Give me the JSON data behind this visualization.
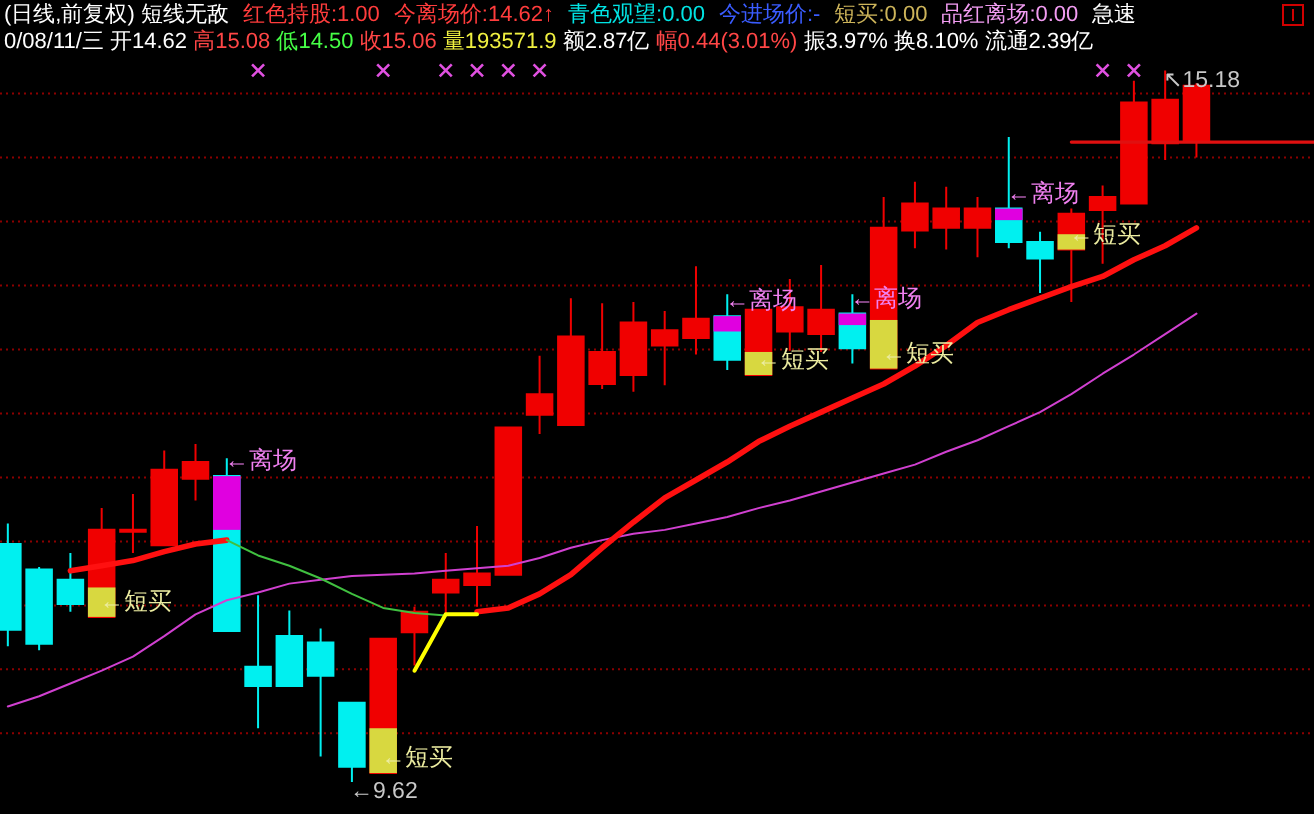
{
  "chart_data": {
    "type": "candlestick",
    "title": "(日线,前复权) 短线无敌",
    "subtitle": "0/08/11/三 开14.62 高15.08 低14.50 收15.06 量193571.9 额2.87亿 幅0.44(3.01%) 振3.97% 换8.10% 流通2.39亿",
    "annotations": [
      "红色持股:1.00",
      "今离场价:14.62↑",
      "青色观望:0.00",
      "今进场价:-",
      "短买:0.00",
      "品红离场:0.00",
      "急速"
    ],
    "categories": [
      null,
      null,
      null,
      null,
      null,
      null,
      null,
      null,
      null,
      null,
      null,
      null,
      null,
      null,
      null,
      null,
      null,
      null,
      null,
      null,
      null,
      null,
      null,
      null,
      null,
      null,
      null,
      null,
      null,
      null,
      null,
      null,
      null,
      null,
      null,
      null,
      null,
      null,
      null,
      null,
      null,
      null,
      null
    ],
    "ylim": [
      9.37,
      15.73
    ],
    "yticks": [
      {
        "value": 10,
        "label": null
      },
      {
        "value": 10.5,
        "label": null
      },
      {
        "value": 11,
        "label": null
      },
      {
        "value": 11.5,
        "label": null
      },
      {
        "value": 12,
        "label": null
      },
      {
        "value": 12.5,
        "label": null
      },
      {
        "value": 13,
        "label": null
      },
      {
        "value": 13.5,
        "label": null
      },
      {
        "value": 14,
        "label": null
      },
      {
        "value": 14.5,
        "label": null
      },
      {
        "value": 15,
        "label": null
      }
    ],
    "grid": "y",
    "series": [
      {
        "type": "candlestick",
        "ohlc": [
          [
            11.48,
            11.64,
            10.68,
            10.81
          ],
          [
            11.28,
            11.3,
            10.65,
            10.7
          ],
          [
            11.2,
            11.41,
            10.95,
            11.01
          ],
          [
            10.91,
            11.76,
            10.91,
            11.59
          ],
          [
            11.59,
            11.87,
            11.41,
            11.59
          ],
          [
            11.47,
            12.21,
            11.47,
            12.06
          ],
          [
            11.99,
            12.26,
            11.82,
            12.12
          ],
          [
            12.01,
            12.15,
            10.8,
            10.8
          ],
          [
            10.52,
            11.08,
            10.04,
            10.37
          ],
          [
            10.76,
            10.96,
            10.37,
            10.37
          ],
          [
            10.71,
            10.82,
            9.82,
            10.45
          ],
          [
            10.24,
            10.24,
            9.62,
            9.74
          ],
          [
            9.69,
            10.74,
            9.69,
            10.74
          ],
          [
            10.79,
            10.99,
            10.53,
            10.95
          ],
          [
            11.1,
            11.41,
            10.94,
            11.2
          ],
          [
            11.16,
            11.62,
            10.99,
            11.25
          ],
          [
            11.24,
            12.39,
            11.24,
            12.39
          ],
          [
            12.49,
            12.95,
            12.34,
            12.65
          ],
          [
            12.41,
            13.4,
            12.41,
            13.1
          ],
          [
            12.73,
            13.36,
            12.69,
            12.98
          ],
          [
            12.8,
            13.37,
            12.67,
            13.21
          ],
          [
            13.03,
            13.3,
            12.72,
            13.15
          ],
          [
            13.09,
            13.65,
            12.96,
            13.24
          ],
          [
            13.26,
            13.43,
            12.84,
            12.92
          ],
          [
            12.8,
            13.31,
            12.8,
            13.31
          ],
          [
            13.14,
            13.55,
            12.99,
            13.33
          ],
          [
            13.12,
            13.66,
            12.98,
            13.31
          ],
          [
            13.28,
            13.43,
            12.89,
            13.01
          ],
          [
            12.85,
            14.19,
            12.85,
            13.95
          ],
          [
            13.93,
            14.31,
            13.79,
            14.14
          ],
          [
            13.95,
            14.27,
            13.78,
            14.1
          ],
          [
            13.95,
            14.19,
            13.72,
            14.1
          ],
          [
            14.1,
            14.66,
            13.79,
            13.84
          ],
          [
            13.84,
            13.92,
            13.44,
            13.71
          ],
          [
            13.78,
            14.1,
            13.37,
            14.06
          ],
          [
            14.09,
            14.28,
            13.67,
            14.19
          ],
          [
            14.14,
            15.1,
            14.14,
            14.93
          ],
          [
            14.61,
            15.18,
            14.48,
            14.95
          ],
          [
            14.62,
            15.08,
            14.5,
            15.06
          ],
          null,
          null,
          null,
          null
        ],
        "colors": [
          "#00f0f0",
          "#00f0f0",
          "#00f0f0",
          "#f00000",
          "#f00000",
          "#f00000",
          "#f00000",
          "#00f0f0",
          "#00f0f0",
          "#00f0f0",
          "#00f0f0",
          "#00f0f0",
          "#f00000",
          "#f00000",
          "#f00000",
          "#f00000",
          "#f00000",
          "#f00000",
          "#f00000",
          "#f00000",
          "#f00000",
          "#f00000",
          "#f00000",
          "#00f0f0",
          "#f00000",
          "#f00000",
          "#f00000",
          "#00f0f0",
          "#f00000",
          "#f00000",
          "#f00000",
          "#f00000",
          "#00f0f0",
          "#00f0f0",
          "#f00000",
          "#f00000",
          "#f00000",
          "#f00000",
          "#f00000",
          null,
          null,
          null,
          null
        ],
        "value_labels": [
          null,
          null,
          null,
          null,
          null,
          null,
          null,
          null,
          null,
          null,
          null,
          "←9.62",
          null,
          null,
          null,
          null,
          null,
          null,
          null,
          null,
          null,
          null,
          null,
          null,
          null,
          null,
          null,
          null,
          null,
          null,
          null,
          null,
          null,
          null,
          null,
          null,
          null,
          "↖15.18",
          null,
          null,
          null,
          null,
          null
        ]
      },
      {
        "type": "bar",
        "color": "#d8d840",
        "base": [
          null,
          null,
          null,
          10.91,
          null,
          null,
          null,
          null,
          null,
          null,
          null,
          null,
          9.69,
          null,
          null,
          null,
          null,
          null,
          null,
          null,
          null,
          null,
          null,
          null,
          12.8,
          null,
          null,
          null,
          12.85,
          null,
          null,
          null,
          null,
          null,
          13.78,
          null,
          null,
          null,
          null,
          null,
          null,
          null,
          null
        ],
        "values": [
          null,
          null,
          null,
          0.23,
          null,
          null,
          null,
          null,
          null,
          null,
          null,
          null,
          0.35,
          null,
          null,
          null,
          null,
          null,
          null,
          null,
          null,
          null,
          null,
          null,
          0.18,
          null,
          null,
          null,
          0.38,
          null,
          null,
          null,
          null,
          null,
          0.12,
          null,
          null,
          null,
          null,
          null,
          null,
          null,
          null
        ],
        "value_labels": [
          null,
          null,
          null,
          "←短买",
          null,
          null,
          null,
          null,
          null,
          null,
          null,
          null,
          "←短买",
          null,
          null,
          null,
          null,
          null,
          null,
          null,
          null,
          null,
          null,
          null,
          "←短买",
          null,
          null,
          null,
          "←短买",
          null,
          null,
          null,
          null,
          null,
          "←短买",
          null,
          null,
          null,
          null,
          null,
          null,
          null,
          null
        ]
      },
      {
        "type": "bar",
        "color": "#e000e0",
        "base": [
          null,
          null,
          null,
          null,
          null,
          null,
          null,
          11.59,
          null,
          null,
          null,
          null,
          null,
          null,
          null,
          null,
          null,
          null,
          null,
          null,
          null,
          null,
          null,
          13.14,
          null,
          null,
          null,
          13.19,
          null,
          null,
          null,
          null,
          14.01,
          null,
          null,
          null,
          null,
          null,
          null,
          null,
          null,
          null,
          null
        ],
        "values": [
          null,
          null,
          null,
          null,
          null,
          null,
          null,
          0.42,
          null,
          null,
          null,
          null,
          null,
          null,
          null,
          null,
          null,
          null,
          null,
          null,
          null,
          null,
          null,
          0.12,
          null,
          null,
          null,
          0.09,
          null,
          null,
          null,
          null,
          0.09,
          null,
          null,
          null,
          null,
          null,
          null,
          null,
          null,
          null,
          null
        ],
        "value_labels": [
          null,
          null,
          null,
          null,
          null,
          null,
          null,
          "←离场",
          null,
          null,
          null,
          null,
          null,
          null,
          null,
          null,
          null,
          null,
          null,
          null,
          null,
          null,
          null,
          "←离场",
          null,
          null,
          null,
          "←离场",
          null,
          null,
          null,
          null,
          "←离场",
          null,
          null,
          null,
          null,
          null,
          null,
          null,
          null,
          null,
          null
        ]
      },
      {
        "type": "line",
        "color": "#d040d0",
        "values": [
          10.21,
          10.29,
          10.39,
          10.49,
          10.6,
          10.76,
          10.93,
          11.04,
          11.1,
          11.17,
          11.2,
          11.23,
          11.24,
          11.25,
          11.27,
          11.29,
          11.31,
          11.37,
          11.45,
          11.51,
          11.56,
          11.59,
          11.64,
          11.69,
          11.76,
          11.82,
          11.89,
          11.96,
          12.03,
          12.1,
          12.2,
          12.29,
          12.4,
          12.51,
          12.65,
          12.81,
          12.96,
          13.12,
          13.28,
          null,
          null,
          null,
          null
        ]
      },
      {
        "type": "line",
        "color": "#ff1010",
        "values": [
          null,
          null,
          11.27,
          11.31,
          11.35,
          11.42,
          11.48,
          11.51,
          null,
          null,
          null,
          null,
          null,
          null,
          null,
          10.95,
          10.98,
          11.09,
          11.24,
          11.45,
          11.65,
          11.84,
          11.98,
          12.12,
          12.28,
          12.4,
          12.51,
          12.62,
          12.73,
          12.87,
          13.03,
          13.21,
          13.31,
          13.4,
          13.49,
          13.57,
          13.7,
          13.81,
          13.95,
          null,
          null,
          null,
          null
        ]
      },
      {
        "type": "line",
        "color": "#40c040",
        "values": [
          null,
          null,
          null,
          null,
          null,
          null,
          null,
          11.51,
          11.39,
          11.31,
          11.21,
          11.09,
          10.98,
          10.94,
          10.92,
          null,
          null,
          null,
          null,
          null,
          null,
          null,
          null,
          null,
          null,
          null,
          null,
          null,
          null,
          null,
          null,
          null,
          null,
          null,
          null,
          null,
          null,
          null,
          null,
          null,
          null,
          null,
          null
        ]
      },
      {
        "type": "line",
        "color": "#ffff00",
        "values": [
          null,
          null,
          null,
          null,
          null,
          null,
          null,
          null,
          null,
          null,
          null,
          null,
          null,
          10.49,
          10.93,
          10.93,
          null,
          null,
          null,
          null,
          null,
          null,
          null,
          null,
          null,
          null,
          null,
          null,
          null,
          null,
          null,
          null,
          null,
          null,
          null,
          null,
          null,
          null,
          null,
          null,
          null,
          null,
          null
        ]
      },
      {
        "type": "line",
        "color": "#e01010",
        "values": [
          null,
          null,
          null,
          null,
          null,
          null,
          null,
          null,
          null,
          null,
          null,
          null,
          null,
          null,
          null,
          null,
          null,
          null,
          null,
          null,
          null,
          null,
          null,
          null,
          null,
          null,
          null,
          null,
          null,
          null,
          null,
          null,
          null,
          null,
          14.62,
          14.62,
          14.62,
          14.62,
          14.62,
          14.62,
          14.62,
          14.62,
          14.62
        ]
      },
      {
        "type": "scatter",
        "color": "#e050e0",
        "marker": "cross",
        "values": [
          null,
          null,
          null,
          null,
          null,
          null,
          null,
          null,
          15.18,
          null,
          null,
          null,
          15.18,
          null,
          15.18,
          15.18,
          15.18,
          15.18,
          null,
          null,
          null,
          null,
          null,
          null,
          null,
          null,
          null,
          null,
          null,
          null,
          null,
          null,
          null,
          null,
          null,
          15.18,
          15.18,
          null,
          null,
          null,
          null,
          null,
          null
        ]
      }
    ]
  }
}
